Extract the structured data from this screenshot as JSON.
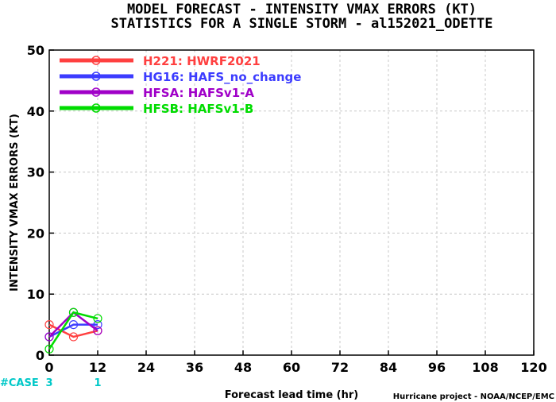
{
  "chart_data": {
    "type": "line",
    "title_line1": "MODEL FORECAST - INTENSITY VMAX ERRORS (KT)",
    "title_line2": "STATISTICS FOR A SINGLE STORM - al152021_ODETTE",
    "xlabel": "Forecast lead time (hr)",
    "ylabel": "INTENSITY VMAX ERRORS (KT)",
    "xlim": [
      0,
      120
    ],
    "ylim": [
      0,
      50
    ],
    "x_ticks": [
      0,
      12,
      24,
      36,
      48,
      60,
      72,
      84,
      96,
      108,
      120
    ],
    "y_ticks": [
      0,
      10,
      20,
      30,
      40,
      50
    ],
    "grid": true,
    "legend_position": "top-left",
    "series": [
      {
        "name": "H221: HWRF2021",
        "color": "#ff4040",
        "x": [
          0,
          6,
          12
        ],
        "values": [
          5,
          3,
          4
        ]
      },
      {
        "name": "HG16: HAFS_no_change",
        "color": "#3c3cff",
        "x": [
          0,
          6,
          12
        ],
        "values": [
          3,
          5,
          5
        ]
      },
      {
        "name": "HFSA: HAFSv1-A",
        "color": "#a000c8",
        "x": [
          0,
          6,
          12
        ],
        "values": [
          3,
          7,
          4
        ]
      },
      {
        "name": "HFSB: HAFSv1-B",
        "color": "#00dc00",
        "x": [
          0,
          6,
          12
        ],
        "values": [
          1,
          7,
          6
        ]
      }
    ],
    "case_label": "#CASE",
    "case_color": "#00c8c8",
    "cases": [
      {
        "x": 0,
        "count": "3"
      },
      {
        "x": 12,
        "count": "1"
      }
    ]
  },
  "footer": {
    "credit": "Hurricane project - NOAA/NCEP/EMC"
  }
}
